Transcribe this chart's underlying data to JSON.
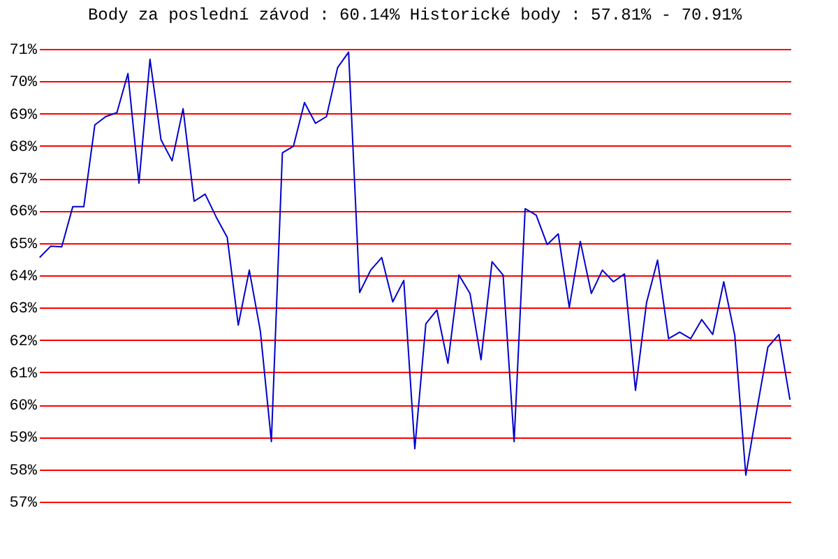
{
  "chart_data": {
    "type": "line",
    "title": "Body za poslední závod : 60.14%  Historické body : 57.81% - 70.91%",
    "categories": [
      null,
      null,
      null,
      null,
      null,
      null,
      null,
      null,
      null,
      null,
      null,
      null,
      null,
      null,
      null,
      null,
      null,
      null,
      null,
      null,
      null,
      null,
      null,
      null,
      null,
      null,
      null,
      null,
      null,
      null,
      null,
      null,
      null,
      null,
      null,
      null,
      null,
      null,
      null,
      null,
      null,
      null,
      null,
      null,
      null,
      null,
      null,
      null,
      null,
      null,
      null,
      null,
      null,
      null,
      null,
      null,
      null,
      null,
      null,
      null,
      null,
      null,
      null,
      null,
      null,
      null,
      null,
      null,
      null
    ],
    "series": [
      {
        "color": "#0000cc",
        "values": [
          64.55,
          64.9,
          64.88,
          66.12,
          66.12,
          68.65,
          68.91,
          69.03,
          70.24,
          66.85,
          70.68,
          68.19,
          67.54,
          69.15,
          66.29,
          66.51,
          65.8,
          65.17,
          62.46,
          64.16,
          62.28,
          58.86,
          67.79,
          67.99,
          69.34,
          68.7,
          68.91,
          70.42,
          70.9,
          63.47,
          64.16,
          64.55,
          63.18,
          63.84,
          58.64,
          62.5,
          62.93,
          61.28,
          64.01,
          63.44,
          61.39,
          64.42,
          64.01,
          58.86,
          66.06,
          65.86,
          64.95,
          65.28,
          63.01,
          65.05,
          63.44,
          64.16,
          63.8,
          64.04,
          60.44,
          63.15,
          64.47,
          62.04,
          62.24,
          62.04,
          62.63,
          62.17,
          63.8,
          62.14,
          57.82,
          59.84,
          61.78,
          62.17,
          60.15
        ]
      }
    ],
    "ylim": [
      57,
      71
    ],
    "yticks": [
      {
        "value": 57,
        "label": "57%"
      },
      {
        "value": 58,
        "label": "58%"
      },
      {
        "value": 59,
        "label": "59%"
      },
      {
        "value": 60,
        "label": "60%"
      },
      {
        "value": 61,
        "label": "61%"
      },
      {
        "value": 62,
        "label": "62%"
      },
      {
        "value": 63,
        "label": "63%"
      },
      {
        "value": 64,
        "label": "64%"
      },
      {
        "value": 65,
        "label": "65%"
      },
      {
        "value": 66,
        "label": "66%"
      },
      {
        "value": 67,
        "label": "67%"
      },
      {
        "value": 68,
        "label": "68%"
      },
      {
        "value": 69,
        "label": "69%"
      },
      {
        "value": 70,
        "label": "70%"
      },
      {
        "value": 71,
        "label": "71%"
      }
    ],
    "grid": "y",
    "legend": false,
    "marker": "none",
    "line_style": "solid",
    "tick_labels": "y"
  }
}
